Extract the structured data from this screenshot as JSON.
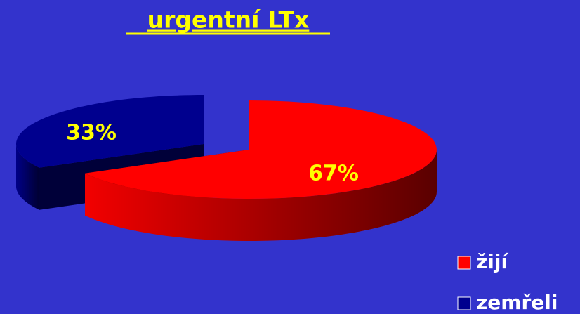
{
  "chart_data": {
    "type": "pie",
    "title": "urgentní LTx",
    "categories": [
      "žijí",
      "zemřeli"
    ],
    "values": [
      67,
      33
    ],
    "value_labels": [
      "67%",
      "33%"
    ],
    "colors": [
      "#ff0000",
      "#00008e"
    ],
    "legend": "bottom-right"
  }
}
